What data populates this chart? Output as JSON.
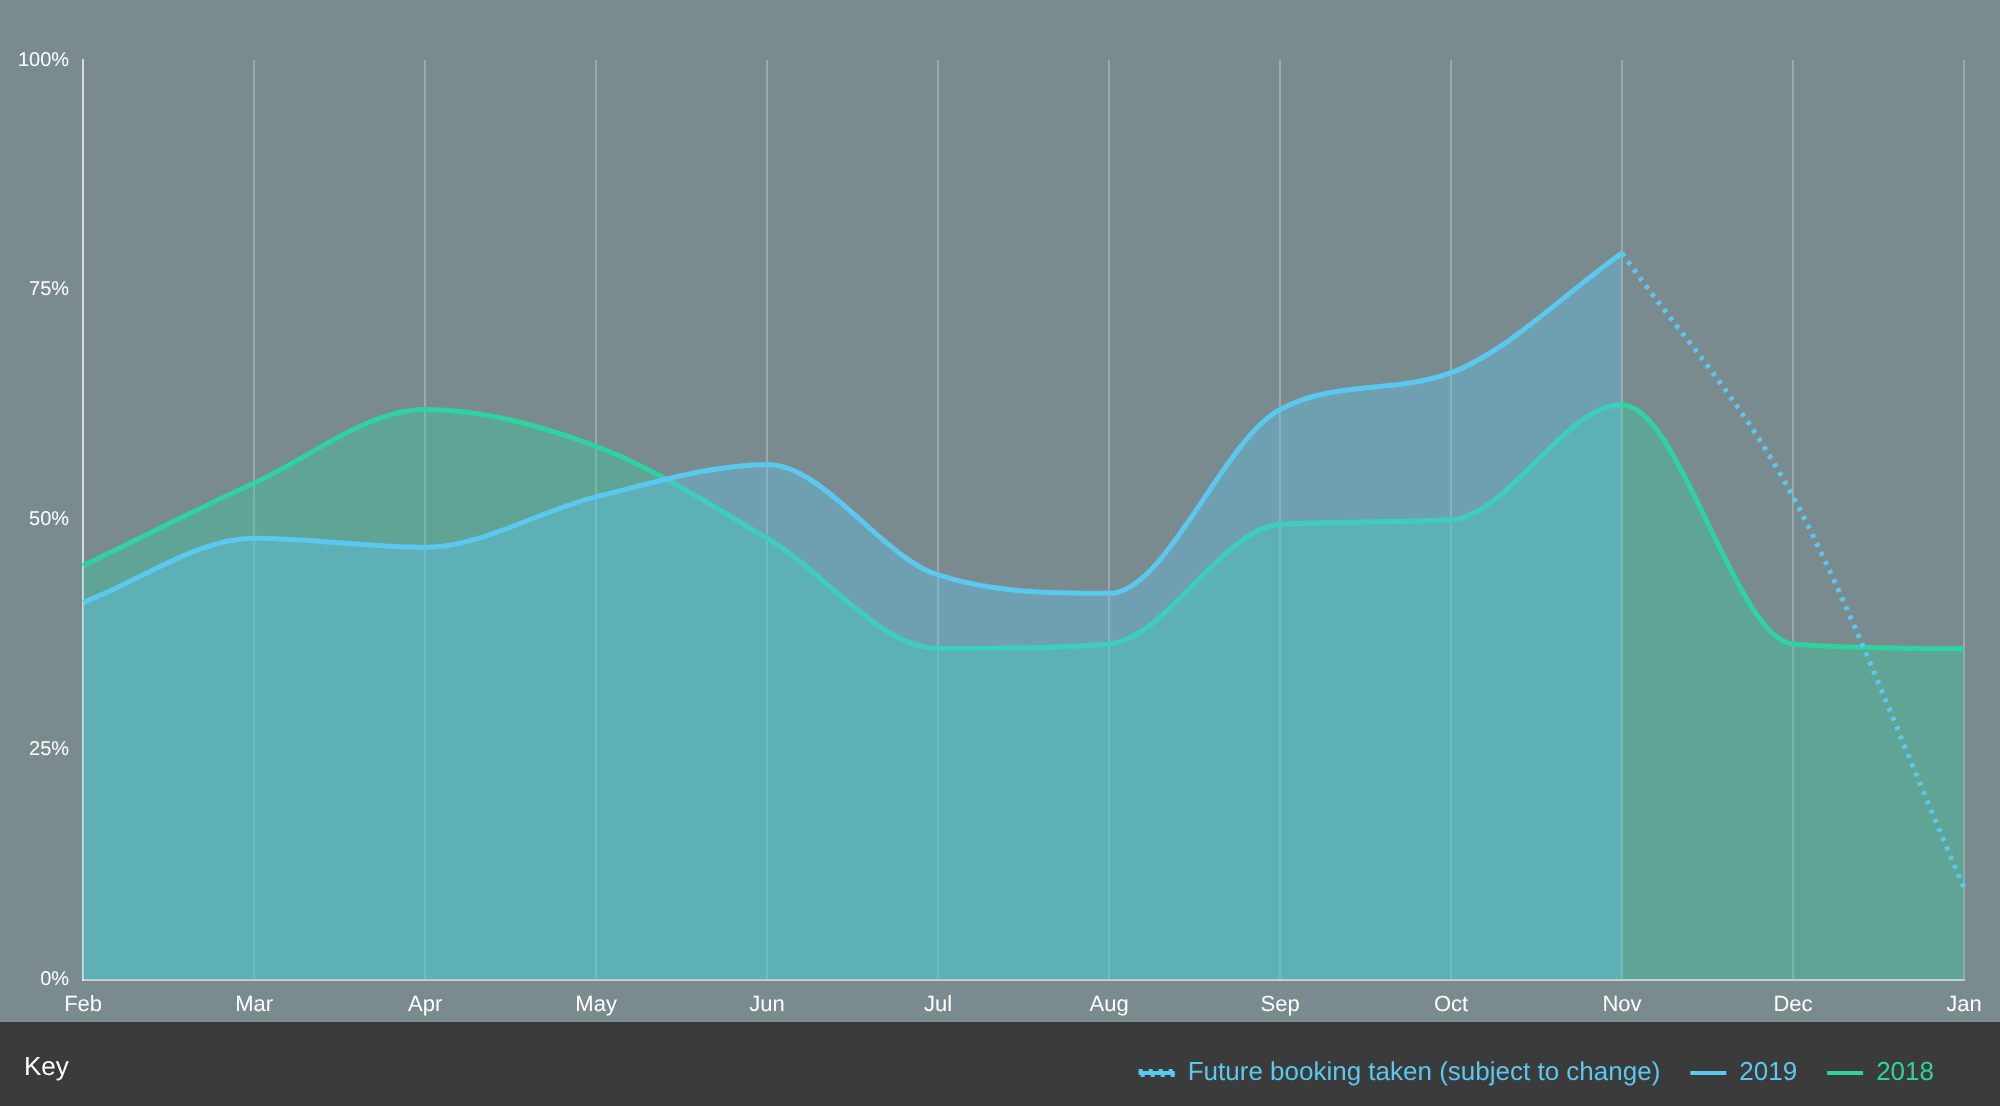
{
  "chart_data": {
    "type": "area",
    "legend_title": "Key",
    "categories": [
      "Feb",
      "Mar",
      "Apr",
      "May",
      "Jun",
      "Jul",
      "Aug",
      "Sep",
      "Oct",
      "Nov",
      "Dec",
      "Jan"
    ],
    "series": [
      {
        "name": "Future booking taken (subject to change)",
        "type": "line",
        "line_style": "dotted",
        "color": "#5bc8f0",
        "values": [
          null,
          null,
          null,
          null,
          null,
          null,
          null,
          null,
          null,
          79,
          52.5,
          10
        ]
      },
      {
        "name": "2019",
        "color": "#5bc8f0",
        "values": [
          41,
          48,
          47,
          52.5,
          56,
          44,
          42,
          62,
          66,
          79,
          null,
          null
        ]
      },
      {
        "name": "2018",
        "color": "#2ed3a0",
        "values": [
          45,
          54,
          62,
          58,
          48,
          36,
          36.5,
          49.5,
          50,
          62.5,
          36.5,
          36
        ]
      }
    ],
    "ylim": [
      0,
      100
    ],
    "yticks": [
      {
        "value": 0,
        "label": "0%"
      },
      {
        "value": 25,
        "label": "25%"
      },
      {
        "value": 50,
        "label": "50%"
      },
      {
        "value": 75,
        "label": "75%"
      },
      {
        "value": 100,
        "label": "100%"
      }
    ],
    "grid": "x",
    "legend": "bottom right",
    "marker": "none"
  }
}
